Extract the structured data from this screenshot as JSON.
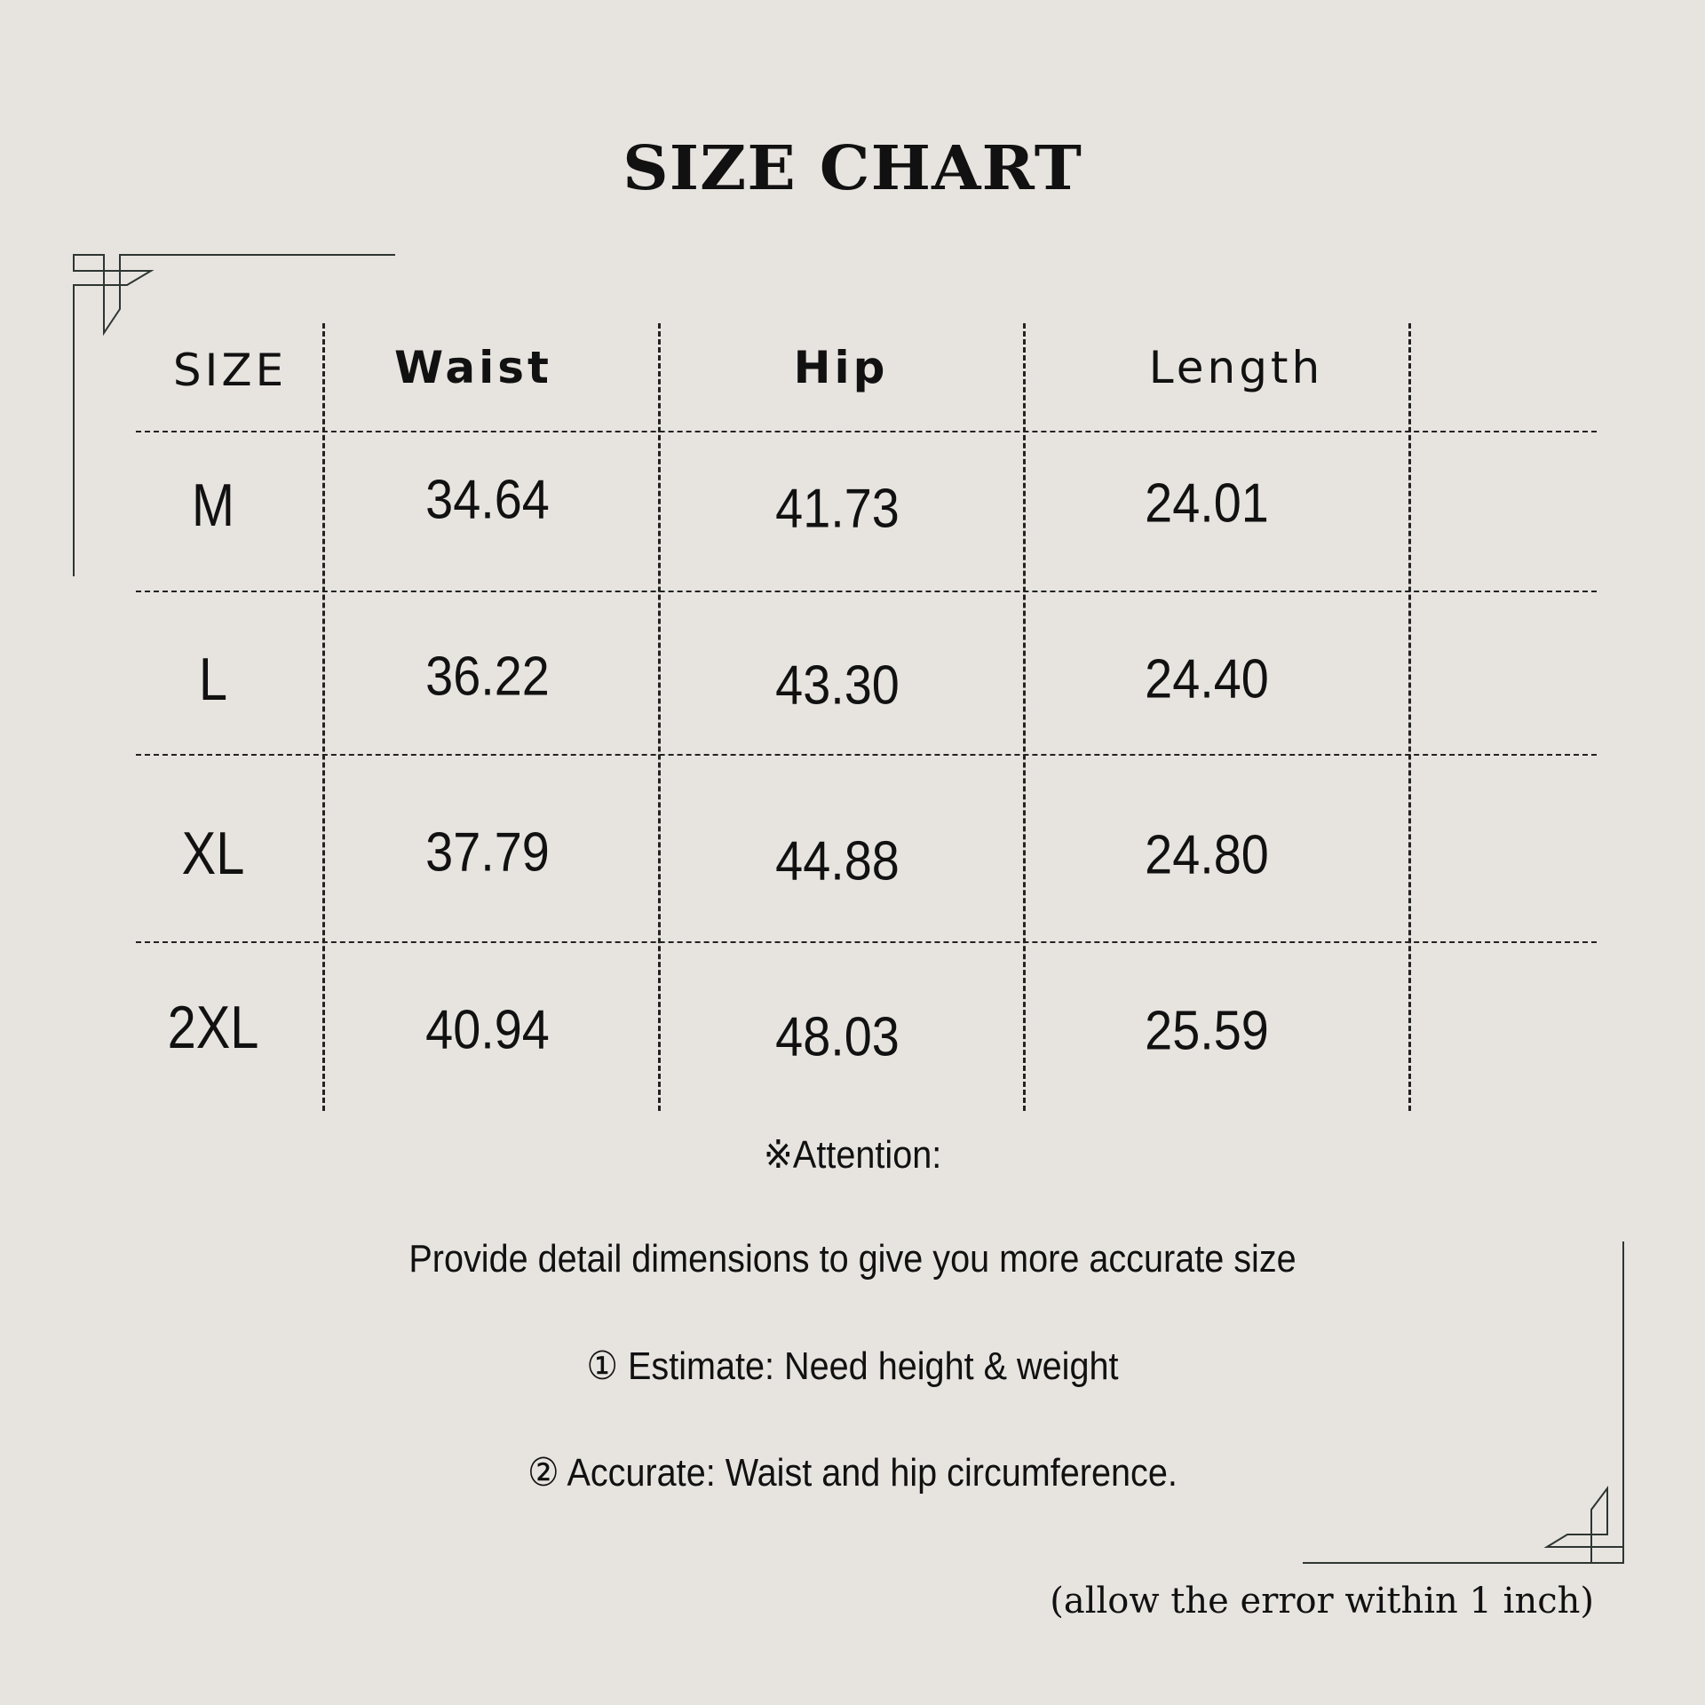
{
  "title": "SIZE CHART",
  "table": {
    "headers": [
      "SIZE",
      "Waist",
      "Hip",
      "Length"
    ],
    "rows": [
      {
        "size": "M",
        "waist": "34.64",
        "hip": "41.73",
        "length": "24.01"
      },
      {
        "size": "L",
        "waist": "36.22",
        "hip": "43.30",
        "length": "24.40"
      },
      {
        "size": "XL",
        "waist": "37.79",
        "hip": "44.88",
        "length": "24.80"
      },
      {
        "size": "2XL",
        "waist": "40.94",
        "hip": "48.03",
        "length": "25.59"
      }
    ]
  },
  "notes": {
    "attention": "※Attention:",
    "line1": "Provide detail dimensions to give you more accurate size",
    "line2": "① Estimate: Need height & weight",
    "line3": "② Accurate: Waist and hip circumference.",
    "allow": "(allow the error within 1 inch)"
  },
  "colors": {
    "background": "#e7e4e0",
    "text": "#111111",
    "ornament": "#2e3532"
  }
}
